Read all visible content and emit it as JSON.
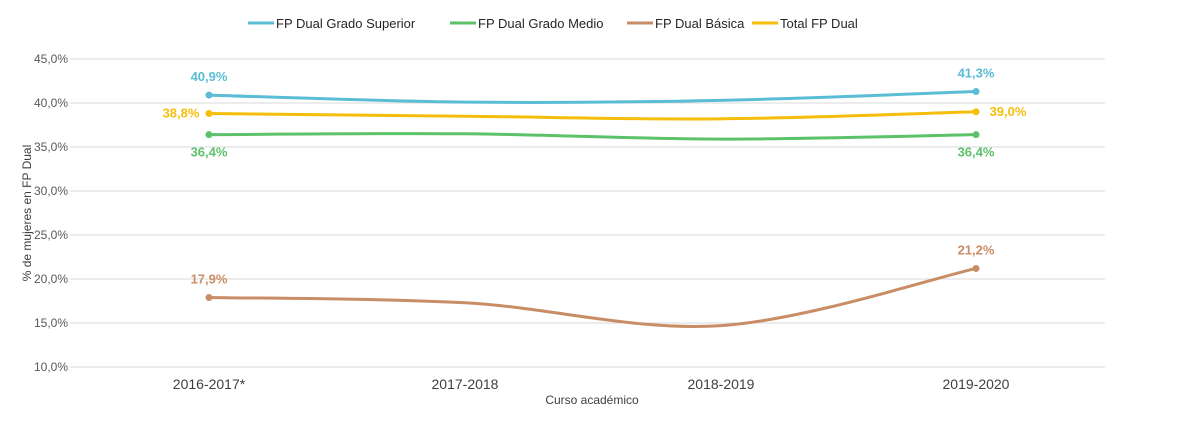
{
  "chart_data": {
    "type": "line",
    "title": "",
    "xlabel": "Curso académico",
    "ylabel": "% de mujeres en FP Dual",
    "categories": [
      "2016-2017*",
      "2017-2018",
      "2018-2019",
      "2019-2020"
    ],
    "ylim": [
      10,
      45
    ],
    "yticks": [
      "10,0%",
      "15,0%",
      "20,0%",
      "25,0%",
      "30,0%",
      "35,0%",
      "40,0%",
      "45,0%"
    ],
    "grid": true,
    "legend_position": "top",
    "smooth": true,
    "series": [
      {
        "name": "FP Dual Grado Superior",
        "color": "#5BBCD6",
        "values": [
          40.9,
          40.1,
          40.3,
          41.3
        ],
        "labels": [
          "40,9%",
          null,
          null,
          "41,3%"
        ]
      },
      {
        "name": "FP Dual Grado Medio",
        "color": "#5CC26A",
        "values": [
          36.4,
          36.5,
          35.9,
          36.4
        ],
        "labels": [
          "36,4%",
          null,
          null,
          "36,4%"
        ]
      },
      {
        "name": "FP Dual Básica",
        "color": "#C98D66",
        "values": [
          17.9,
          17.3,
          14.7,
          21.2
        ],
        "labels": [
          "17,9%",
          null,
          null,
          "21,2%"
        ]
      },
      {
        "name": "Total FP Dual",
        "color": "#F5BE0B",
        "values": [
          38.8,
          38.5,
          38.2,
          39.0
        ],
        "labels": [
          "38,8%",
          null,
          null,
          "39,0%"
        ]
      }
    ]
  }
}
